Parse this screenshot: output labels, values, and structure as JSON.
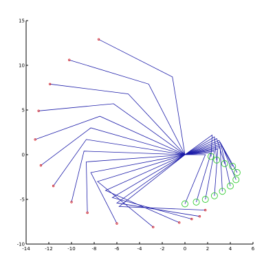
{
  "chart_data": {
    "type": "line",
    "title": "",
    "xlabel": "",
    "ylabel": "",
    "xlim": [
      -14,
      6
    ],
    "ylim": [
      -10,
      15
    ],
    "grid": false,
    "xticks": [
      "-14",
      "-12",
      "-10",
      "-8",
      "-6",
      "-4",
      "-2",
      "0",
      "2",
      "4",
      "6"
    ],
    "yticks": [
      "15",
      "10",
      "5",
      "0",
      "-5",
      "-10"
    ],
    "colors": {
      "arm": "#1a1aa8",
      "tip_marker": "#dd2222",
      "joint_marker": "#33cc33",
      "axes": "#000000"
    },
    "pivot": [
      0,
      0
    ],
    "series": [
      {
        "kind": "upper-arms",
        "polylines": [
          [
            [
              0,
              0
            ],
            [
              -1.1,
              8.7
            ],
            [
              -7.6,
              12.9
            ]
          ],
          [
            [
              0,
              0
            ],
            [
              -3.2,
              7.9
            ],
            [
              -10.2,
              10.6
            ]
          ],
          [
            [
              0,
              0
            ],
            [
              -5.0,
              6.8
            ],
            [
              -11.9,
              7.9
            ]
          ],
          [
            [
              0,
              0
            ],
            [
              -6.3,
              5.7
            ],
            [
              -12.9,
              4.9
            ]
          ],
          [
            [
              0,
              0
            ],
            [
              -7.5,
              4.3
            ],
            [
              -13.2,
              1.7
            ]
          ],
          [
            [
              0,
              0
            ],
            [
              -8.3,
              3.0
            ],
            [
              -12.7,
              -1.2
            ]
          ],
          [
            [
              0,
              0
            ],
            [
              -8.7,
              1.7
            ],
            [
              -11.6,
              -3.5
            ]
          ],
          [
            [
              0,
              0
            ],
            [
              -8.9,
              0.4
            ],
            [
              -10.0,
              -5.3
            ]
          ],
          [
            [
              0,
              0
            ],
            [
              -8.7,
              -0.8
            ],
            [
              -8.6,
              -6.5
            ]
          ],
          [
            [
              0,
              0
            ],
            [
              -8.3,
              -2.0
            ],
            [
              -6.0,
              -7.7
            ]
          ],
          [
            [
              0,
              0
            ],
            [
              -7.7,
              -3.0
            ],
            [
              -2.8,
              -8.1
            ]
          ],
          [
            [
              0,
              0
            ],
            [
              -7.0,
              -4.0
            ],
            [
              -0.5,
              -7.6
            ]
          ],
          [
            [
              0,
              0
            ],
            [
              -6.4,
              -4.8
            ],
            [
              0.6,
              -7.2
            ]
          ],
          [
            [
              0,
              0
            ],
            [
              -6.0,
              -5.4
            ],
            [
              1.3,
              -6.9
            ]
          ],
          [
            [
              0,
              0
            ],
            [
              -5.8,
              -5.8
            ],
            [
              1.8,
              -6.2
            ]
          ]
        ]
      },
      {
        "kind": "lower-arms",
        "polylines": [
          [
            [
              0,
              0
            ],
            [
              2.4,
              2.2
            ],
            [
              2.3,
              -0.2
            ]
          ],
          [
            [
              0,
              0
            ],
            [
              2.6,
              2.0
            ],
            [
              2.8,
              -0.6
            ]
          ],
          [
            [
              0,
              0
            ],
            [
              2.8,
              1.8
            ],
            [
              3.5,
              -1.0
            ]
          ],
          [
            [
              0,
              0
            ],
            [
              3.0,
              1.6
            ],
            [
              4.2,
              -1.3
            ]
          ],
          [
            [
              0,
              0
            ],
            [
              3.1,
              1.4
            ],
            [
              4.6,
              -2.0
            ]
          ],
          [
            [
              0,
              0
            ],
            [
              3.2,
              1.2
            ],
            [
              4.5,
              -2.8
            ]
          ],
          [
            [
              0,
              0
            ],
            [
              3.2,
              1.0
            ],
            [
              4.0,
              -3.5
            ]
          ],
          [
            [
              0,
              0
            ],
            [
              3.1,
              0.8
            ],
            [
              3.3,
              -4.1
            ]
          ],
          [
            [
              0,
              0
            ],
            [
              2.9,
              0.6
            ],
            [
              2.6,
              -4.6
            ]
          ],
          [
            [
              0,
              0
            ],
            [
              2.6,
              0.4
            ],
            [
              1.8,
              -5.0
            ]
          ],
          [
            [
              0,
              0
            ],
            [
              2.3,
              0.2
            ],
            [
              1.0,
              -5.3
            ]
          ],
          [
            [
              0,
              0
            ],
            [
              1.8,
              0.0
            ],
            [
              0.0,
              -5.5
            ]
          ]
        ]
      }
    ],
    "tip_markers": [
      [
        -7.6,
        12.9
      ],
      [
        -10.2,
        10.6
      ],
      [
        -11.9,
        7.9
      ],
      [
        -12.9,
        4.9
      ],
      [
        -13.2,
        1.7
      ],
      [
        -12.7,
        -1.2
      ],
      [
        -11.6,
        -3.5
      ],
      [
        -10.0,
        -5.3
      ],
      [
        -8.6,
        -6.5
      ],
      [
        -6.0,
        -7.7
      ],
      [
        -2.8,
        -8.1
      ],
      [
        -0.5,
        -7.6
      ],
      [
        0.6,
        -7.2
      ],
      [
        1.3,
        -6.9
      ],
      [
        1.8,
        -6.2
      ]
    ],
    "joint_markers": [
      [
        2.3,
        -0.2
      ],
      [
        2.8,
        -0.6
      ],
      [
        3.5,
        -1.0
      ],
      [
        4.2,
        -1.3
      ],
      [
        4.6,
        -2.0
      ],
      [
        4.5,
        -2.8
      ],
      [
        4.0,
        -3.5
      ],
      [
        3.3,
        -4.1
      ],
      [
        2.6,
        -4.6
      ],
      [
        1.8,
        -5.0
      ],
      [
        1.0,
        -5.3
      ],
      [
        0.0,
        -5.5
      ]
    ]
  }
}
